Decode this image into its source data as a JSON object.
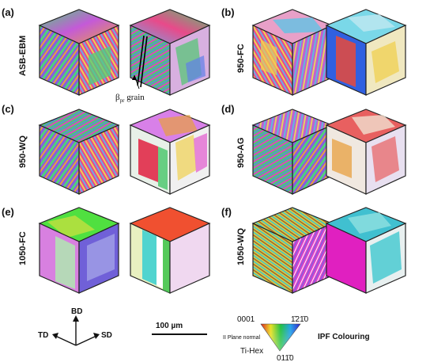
{
  "panels": [
    {
      "label": "(a)",
      "condition": "ASB-EBM"
    },
    {
      "label": "(b)",
      "condition": "950-FC"
    },
    {
      "label": "(c)",
      "condition": "950-WQ"
    },
    {
      "label": "(d)",
      "condition": "950-AG"
    },
    {
      "label": "(e)",
      "condition": "1050-FC"
    },
    {
      "label": "(f)",
      "condition": "1050-WQ"
    }
  ],
  "annotation": {
    "beta_main": "β",
    "beta_sub": "pr",
    "beta_rest": " grain"
  },
  "axes": {
    "bd": "BD",
    "td": "TD",
    "sd": "SD"
  },
  "scalebar": {
    "label": "100 µm"
  },
  "ipf_legend": {
    "corner_top_left": "0001",
    "corner_top_right": "1̄21̄0",
    "corner_bottom": "011̄0",
    "plane_normal": "II Plane normal",
    "phase": "Ti-Hex",
    "title": "IPF Colouring"
  },
  "colors": {
    "asb_ebm": [
      "#4fd27a",
      "#c45ad8",
      "#e8a040",
      "#6fa8e8"
    ],
    "950_fc": [
      "#e84a8a",
      "#4fc8e8",
      "#f0d050",
      "#8a5ae0"
    ],
    "950_wq": [
      "#d84ac0",
      "#50c870",
      "#e86040",
      "#6080e8"
    ],
    "950_ag": [
      "#c060d0",
      "#e8d060",
      "#60b8e0",
      "#e86060"
    ],
    "1050_fc": [
      "#50e040",
      "#f05030",
      "#c0f0c0",
      "#7060d8"
    ],
    "1050_wq": [
      "#d8d040",
      "#e040c8",
      "#40c0d0",
      "#a06030"
    ]
  }
}
